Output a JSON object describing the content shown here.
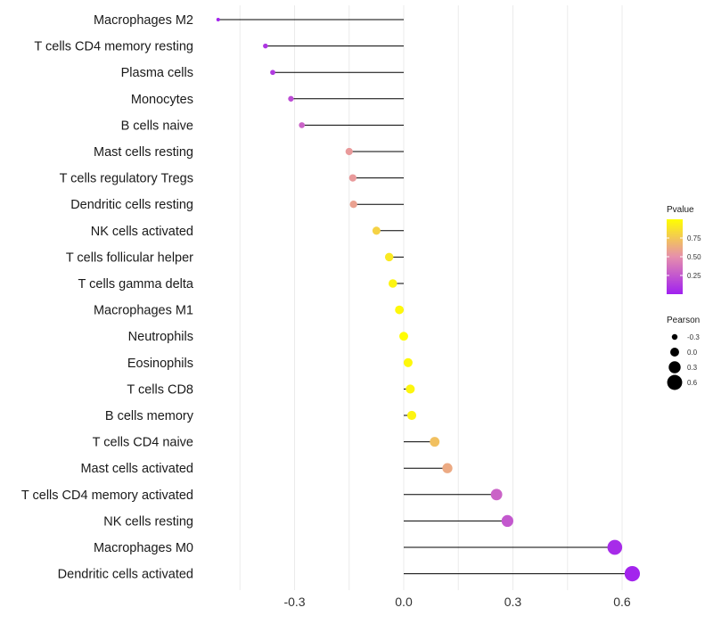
{
  "chart_data": {
    "type": "lollipop",
    "title": "",
    "xlabel": "",
    "ylabel": "",
    "xlim": [
      -0.52,
      0.68
    ],
    "xticks": [
      "-0.3",
      "0.0",
      "0.3",
      "0.6"
    ],
    "xtick_values": [
      -0.3,
      0.0,
      0.3,
      0.6
    ],
    "grid": true,
    "categories": [
      "Macrophages M2",
      "T cells CD4 memory resting",
      "Plasma cells",
      "Monocytes",
      "B cells naive",
      "Mast cells resting",
      "T cells regulatory  Tregs ",
      "Dendritic cells resting",
      "NK cells activated",
      "T cells follicular helper",
      "T cells gamma delta",
      "Macrophages M1",
      "Neutrophils",
      "Eosinophils",
      "T cells CD8",
      "B cells memory",
      "T cells CD4 naive",
      "Mast cells activated",
      "T cells CD4 memory activated",
      "NK cells resting",
      "Macrophages M0",
      "Dendritic cells activated"
    ],
    "pearson": [
      -0.51,
      -0.38,
      -0.36,
      -0.31,
      -0.28,
      -0.15,
      -0.14,
      -0.138,
      -0.075,
      -0.04,
      -0.03,
      -0.012,
      0.0,
      0.012,
      0.018,
      0.022,
      0.085,
      0.12,
      0.255,
      0.285,
      0.58,
      0.628
    ],
    "pvalue": [
      0.02,
      0.1,
      0.12,
      0.2,
      0.3,
      0.55,
      0.55,
      0.58,
      0.8,
      0.9,
      0.95,
      0.97,
      0.99,
      0.97,
      0.96,
      0.95,
      0.72,
      0.62,
      0.3,
      0.25,
      0.05,
      0.02
    ],
    "legend_pvalue": {
      "title": "Pvalue",
      "ticks": [
        "0.75",
        "0.50",
        "0.25"
      ],
      "tick_values": [
        0.75,
        0.5,
        0.25
      ],
      "range": [
        0.0,
        1.0
      ],
      "low_color": "#a020f0",
      "mid_color": "#e68fac",
      "high_color": "#ffff00"
    },
    "legend_pearson": {
      "title": "Pearson",
      "labels": [
        "-0.3",
        "0.0",
        "0.3",
        "0.6"
      ],
      "values": [
        -0.3,
        0.0,
        0.3,
        0.6
      ]
    },
    "legend_position": "right"
  }
}
